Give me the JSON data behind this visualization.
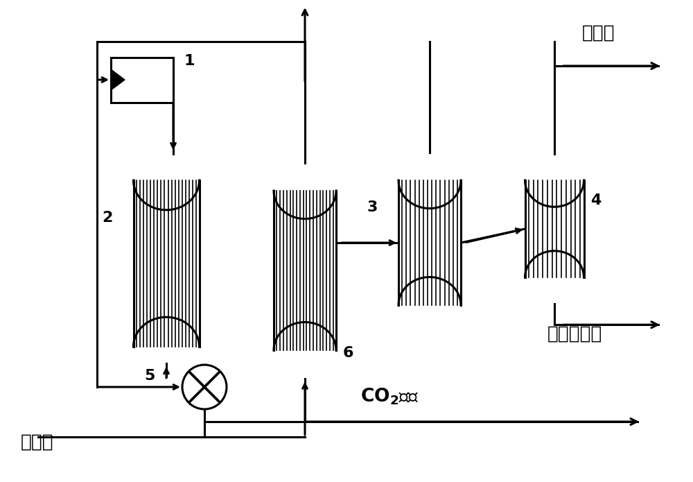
{
  "labels": {
    "syngas": "合成气",
    "co2": "CO₂排放",
    "purge": "驰放口",
    "product": "有机烃产物",
    "comp_num": "1",
    "reactor1_num": "2",
    "reactor2_num": "3",
    "reactor3_num": "4",
    "valve_num": "5",
    "reactor4_num": "6"
  },
  "line_color": "#000000",
  "line_width": 2.2,
  "fill_color": "#ffffff",
  "stripe_color": "#000000",
  "background": "#ffffff",
  "figsize": [
    10.0,
    6.95
  ],
  "dpi": 100
}
